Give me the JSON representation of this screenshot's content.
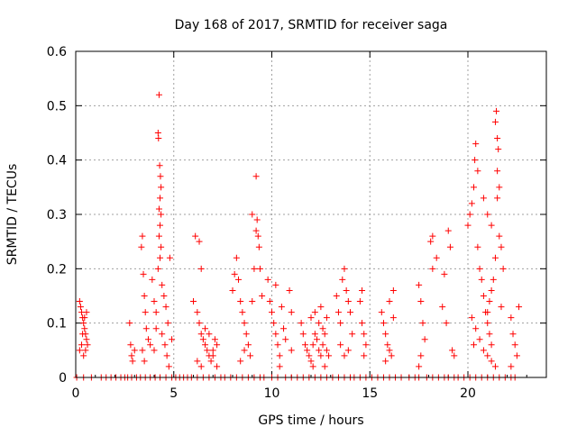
{
  "chart_data": {
    "type": "scatter",
    "title": "Day 168 of 2017, SRMTID for receiver saga",
    "xlabel": "GPS time / hours",
    "ylabel": "SRMTID / TECUs",
    "xlim": [
      0,
      24
    ],
    "ylim": [
      0,
      0.6
    ],
    "xticks": [
      "0",
      "5",
      "10",
      "15",
      "20"
    ],
    "yticks": [
      "0",
      "0.1",
      "0.2",
      "0.3",
      "0.4",
      "0.5",
      "0.6"
    ],
    "grid": true,
    "marker_color": "#ff0000",
    "marker": "plus",
    "points": [
      [
        0.2,
        0.14
      ],
      [
        0.25,
        0.13
      ],
      [
        0.3,
        0.12
      ],
      [
        0.35,
        0.11
      ],
      [
        0.4,
        0.1
      ],
      [
        0.45,
        0.09
      ],
      [
        0.5,
        0.08
      ],
      [
        0.55,
        0.07
      ],
      [
        0.2,
        0.05
      ],
      [
        0.3,
        0.06
      ],
      [
        0.4,
        0.04
      ],
      [
        0.5,
        0.05
      ],
      [
        0.6,
        0.06
      ],
      [
        0.35,
        0.08
      ],
      [
        0.45,
        0.11
      ],
      [
        0.55,
        0.12
      ],
      [
        2.75,
        0.1
      ],
      [
        2.8,
        0.06
      ],
      [
        2.85,
        0.04
      ],
      [
        2.9,
        0.03
      ],
      [
        3.0,
        0.05
      ],
      [
        3.4,
        0.26
      ],
      [
        3.35,
        0.24
      ],
      [
        3.45,
        0.19
      ],
      [
        3.5,
        0.15
      ],
      [
        3.55,
        0.12
      ],
      [
        3.6,
        0.09
      ],
      [
        3.7,
        0.07
      ],
      [
        3.8,
        0.06
      ],
      [
        3.4,
        0.05
      ],
      [
        3.5,
        0.03
      ],
      [
        3.9,
        0.18
      ],
      [
        4.0,
        0.14
      ],
      [
        4.1,
        0.12
      ],
      [
        4.25,
        0.52
      ],
      [
        4.2,
        0.45
      ],
      [
        4.22,
        0.44
      ],
      [
        4.28,
        0.39
      ],
      [
        4.32,
        0.37
      ],
      [
        4.35,
        0.35
      ],
      [
        4.3,
        0.33
      ],
      [
        4.25,
        0.31
      ],
      [
        4.35,
        0.3
      ],
      [
        4.3,
        0.28
      ],
      [
        4.25,
        0.26
      ],
      [
        4.35,
        0.24
      ],
      [
        4.3,
        0.22
      ],
      [
        4.2,
        0.2
      ],
      [
        4.4,
        0.17
      ],
      [
        4.5,
        0.15
      ],
      [
        4.6,
        0.13
      ],
      [
        4.7,
        0.1
      ],
      [
        4.8,
        0.22
      ],
      [
        4.4,
        0.08
      ],
      [
        4.55,
        0.06
      ],
      [
        4.65,
        0.04
      ],
      [
        4.75,
        0.02
      ],
      [
        4.1,
        0.09
      ],
      [
        4.0,
        0.05
      ],
      [
        4.9,
        0.07
      ],
      [
        6.1,
        0.26
      ],
      [
        6.3,
        0.25
      ],
      [
        6.4,
        0.2
      ],
      [
        6.0,
        0.14
      ],
      [
        6.2,
        0.12
      ],
      [
        6.3,
        0.1
      ],
      [
        6.4,
        0.08
      ],
      [
        6.5,
        0.07
      ],
      [
        6.6,
        0.06
      ],
      [
        6.7,
        0.05
      ],
      [
        6.8,
        0.04
      ],
      [
        6.9,
        0.03
      ],
      [
        7.0,
        0.05
      ],
      [
        7.1,
        0.07
      ],
      [
        7.2,
        0.06
      ],
      [
        6.6,
        0.09
      ],
      [
        6.8,
        0.08
      ],
      [
        7.0,
        0.04
      ],
      [
        6.2,
        0.03
      ],
      [
        6.4,
        0.02
      ],
      [
        7.2,
        0.02
      ],
      [
        8.0,
        0.16
      ],
      [
        8.1,
        0.19
      ],
      [
        8.2,
        0.22
      ],
      [
        8.3,
        0.18
      ],
      [
        8.4,
        0.14
      ],
      [
        8.5,
        0.12
      ],
      [
        8.6,
        0.1
      ],
      [
        8.7,
        0.08
      ],
      [
        8.8,
        0.06
      ],
      [
        8.9,
        0.04
      ],
      [
        9.0,
        0.14
      ],
      [
        9.1,
        0.2
      ],
      [
        9.2,
        0.27
      ],
      [
        9.25,
        0.29
      ],
      [
        9.3,
        0.26
      ],
      [
        9.35,
        0.24
      ],
      [
        9.2,
        0.37
      ],
      [
        9.4,
        0.2
      ],
      [
        9.5,
        0.15
      ],
      [
        9.0,
        0.3
      ],
      [
        8.4,
        0.03
      ],
      [
        8.6,
        0.05
      ],
      [
        9.8,
        0.18
      ],
      [
        9.9,
        0.14
      ],
      [
        10.0,
        0.12
      ],
      [
        10.1,
        0.1
      ],
      [
        10.2,
        0.08
      ],
      [
        10.3,
        0.06
      ],
      [
        10.4,
        0.04
      ],
      [
        10.5,
        0.13
      ],
      [
        10.6,
        0.09
      ],
      [
        10.7,
        0.07
      ],
      [
        10.9,
        0.16
      ],
      [
        11.0,
        0.12
      ],
      [
        10.2,
        0.17
      ],
      [
        10.4,
        0.02
      ],
      [
        11.0,
        0.05
      ],
      [
        11.5,
        0.1
      ],
      [
        11.6,
        0.08
      ],
      [
        11.7,
        0.06
      ],
      [
        11.8,
        0.05
      ],
      [
        11.9,
        0.04
      ],
      [
        12.0,
        0.03
      ],
      [
        12.1,
        0.06
      ],
      [
        12.2,
        0.08
      ],
      [
        12.3,
        0.07
      ],
      [
        12.4,
        0.05
      ],
      [
        12.5,
        0.04
      ],
      [
        12.6,
        0.06
      ],
      [
        12.7,
        0.08
      ],
      [
        12.8,
        0.05
      ],
      [
        12.9,
        0.04
      ],
      [
        12.0,
        0.11
      ],
      [
        12.2,
        0.12
      ],
      [
        12.4,
        0.1
      ],
      [
        12.6,
        0.09
      ],
      [
        12.8,
        0.11
      ],
      [
        12.5,
        0.13
      ],
      [
        12.1,
        0.02
      ],
      [
        12.7,
        0.02
      ],
      [
        13.3,
        0.15
      ],
      [
        13.4,
        0.12
      ],
      [
        13.5,
        0.1
      ],
      [
        13.6,
        0.18
      ],
      [
        13.7,
        0.2
      ],
      [
        13.8,
        0.16
      ],
      [
        13.9,
        0.14
      ],
      [
        14.0,
        0.12
      ],
      [
        14.1,
        0.08
      ],
      [
        13.5,
        0.06
      ],
      [
        13.7,
        0.04
      ],
      [
        13.9,
        0.05
      ],
      [
        14.5,
        0.14
      ],
      [
        14.6,
        0.1
      ],
      [
        14.7,
        0.08
      ],
      [
        14.8,
        0.06
      ],
      [
        14.6,
        0.16
      ],
      [
        14.7,
        0.04
      ],
      [
        15.6,
        0.12
      ],
      [
        15.7,
        0.1
      ],
      [
        15.8,
        0.08
      ],
      [
        15.9,
        0.06
      ],
      [
        16.0,
        0.05
      ],
      [
        16.1,
        0.04
      ],
      [
        16.2,
        0.11
      ],
      [
        16.2,
        0.16
      ],
      [
        16.0,
        0.14
      ],
      [
        15.8,
        0.03
      ],
      [
        17.5,
        0.17
      ],
      [
        17.6,
        0.14
      ],
      [
        17.7,
        0.1
      ],
      [
        17.8,
        0.07
      ],
      [
        17.6,
        0.04
      ],
      [
        17.5,
        0.02
      ],
      [
        18.1,
        0.25
      ],
      [
        18.2,
        0.26
      ],
      [
        18.2,
        0.2
      ],
      [
        18.4,
        0.22
      ],
      [
        18.8,
        0.19
      ],
      [
        19.0,
        0.27
      ],
      [
        19.1,
        0.24
      ],
      [
        18.7,
        0.13
      ],
      [
        18.9,
        0.1
      ],
      [
        19.2,
        0.05
      ],
      [
        19.3,
        0.04
      ],
      [
        20.0,
        0.28
      ],
      [
        20.1,
        0.3
      ],
      [
        20.2,
        0.32
      ],
      [
        20.3,
        0.35
      ],
      [
        20.35,
        0.4
      ],
      [
        20.4,
        0.43
      ],
      [
        20.5,
        0.24
      ],
      [
        20.6,
        0.2
      ],
      [
        20.7,
        0.18
      ],
      [
        20.8,
        0.15
      ],
      [
        20.9,
        0.12
      ],
      [
        21.0,
        0.1
      ],
      [
        21.1,
        0.08
      ],
      [
        21.2,
        0.06
      ],
      [
        20.5,
        0.38
      ],
      [
        20.8,
        0.33
      ],
      [
        21.0,
        0.3
      ],
      [
        21.2,
        0.28
      ],
      [
        21.4,
        0.47
      ],
      [
        21.45,
        0.49
      ],
      [
        21.5,
        0.44
      ],
      [
        21.55,
        0.42
      ],
      [
        21.5,
        0.38
      ],
      [
        21.6,
        0.35
      ],
      [
        21.5,
        0.33
      ],
      [
        21.6,
        0.26
      ],
      [
        21.7,
        0.24
      ],
      [
        21.4,
        0.22
      ],
      [
        21.3,
        0.18
      ],
      [
        21.2,
        0.16
      ],
      [
        21.1,
        0.14
      ],
      [
        21.0,
        0.12
      ],
      [
        20.4,
        0.09
      ],
      [
        20.6,
        0.07
      ],
      [
        20.8,
        0.05
      ],
      [
        21.0,
        0.04
      ],
      [
        21.2,
        0.03
      ],
      [
        21.4,
        0.02
      ],
      [
        20.3,
        0.06
      ],
      [
        20.2,
        0.11
      ],
      [
        21.8,
        0.2
      ],
      [
        21.7,
        0.13
      ],
      [
        22.2,
        0.11
      ],
      [
        22.3,
        0.08
      ],
      [
        22.4,
        0.06
      ],
      [
        22.5,
        0.04
      ],
      [
        22.6,
        0.13
      ],
      [
        22.2,
        0.02
      ]
    ],
    "zero_points_x": [
      0.05,
      0.4,
      0.8,
      1.3,
      1.55,
      1.8,
      2.05,
      2.3,
      2.5,
      2.65,
      2.85,
      3.1,
      3.3,
      3.55,
      3.8,
      4.05,
      4.3,
      4.6,
      4.9,
      5.1,
      5.3,
      5.5,
      5.7,
      5.9,
      6.2,
      6.5,
      6.8,
      7.1,
      7.4,
      7.6,
      7.9,
      8.2,
      8.5,
      8.8,
      9.1,
      9.4,
      9.6,
      10.0,
      10.3,
      10.7,
      11.0,
      11.3,
      11.6,
      11.9,
      12.2,
      12.5,
      12.8,
      13.1,
      13.4,
      13.7,
      14.0,
      14.2,
      14.5,
      14.8,
      15.1,
      15.4,
      15.7,
      16.0,
      16.3,
      16.6,
      17.0,
      17.3,
      17.5,
      17.9,
      18.2,
      18.5,
      18.8,
      19.0,
      19.3,
      19.5,
      19.8,
      20.1,
      20.4,
      20.7,
      21.0,
      21.3,
      21.6,
      21.9,
      22.2,
      22.4
    ]
  }
}
